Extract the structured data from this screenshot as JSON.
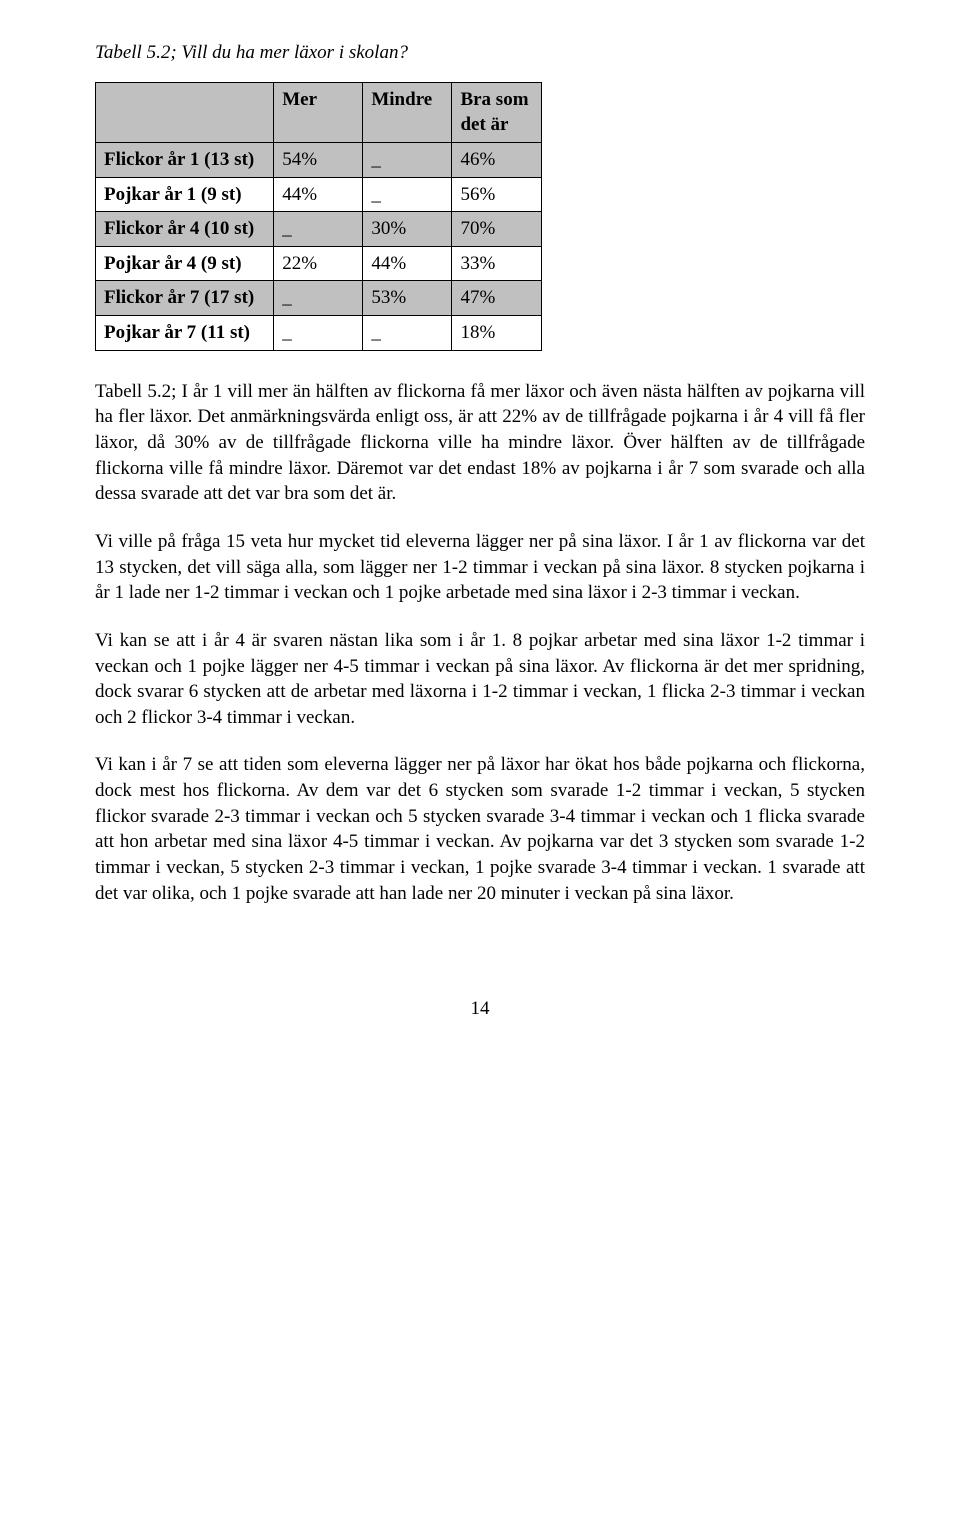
{
  "caption": "Tabell 5.2; Vill du ha mer läxor i skolan?",
  "table": {
    "header_blank": "",
    "headers": [
      "Mer",
      "Mindre",
      "Bra som det är"
    ],
    "rows": [
      {
        "shaded": true,
        "label": "Flickor år 1 (13 st)",
        "c1": "54%",
        "c2": "_",
        "c3": "46%"
      },
      {
        "shaded": false,
        "label": "Pojkar år 1 (9 st)",
        "c1": "44%",
        "c2": "_",
        "c3": "56%"
      },
      {
        "shaded": true,
        "label": "Flickor år 4 (10 st)",
        "c1": "_",
        "c2": "30%",
        "c3": "70%"
      },
      {
        "shaded": false,
        "label": "Pojkar år 4 (9 st)",
        "c1": "22%",
        "c2": "44%",
        "c3": "33%"
      },
      {
        "shaded": true,
        "label": "Flickor år 7 (17 st)",
        "c1": "_",
        "c2": "53%",
        "c3": "47%"
      },
      {
        "shaded": false,
        "label": "Pojkar år 7 (11 st)",
        "c1": "_",
        "c2": "_",
        "c3": "18%"
      }
    ]
  },
  "paragraphs": {
    "p1": "Tabell 5.2; I år 1 vill mer än hälften av flickorna få mer läxor och även nästa hälften av pojkarna vill ha fler läxor. Det anmärkningsvärda enligt oss, är att 22% av de tillfrågade pojkarna i år 4 vill få fler läxor, då 30% av de tillfrågade flickorna ville ha mindre läxor. Över hälften av de tillfrågade flickorna ville få mindre läxor. Däremot var det endast 18% av pojkarna i år 7 som svarade och alla dessa svarade att det var bra som det är.",
    "p2": "Vi ville på fråga 15 veta hur mycket tid eleverna lägger ner på sina läxor. I år 1 av flickorna var det 13 stycken, det vill säga alla, som lägger ner 1-2 timmar i veckan på sina läxor. 8 stycken pojkarna i år 1 lade ner 1-2 timmar i veckan och 1 pojke arbetade med sina läxor i 2-3 timmar i veckan.",
    "p3": "Vi kan se att i år 4 är svaren nästan lika som i år 1. 8 pojkar arbetar med sina läxor 1-2 timmar i veckan och 1 pojke lägger ner 4-5 timmar i veckan på sina läxor. Av flickorna är det mer spridning, dock svarar 6 stycken att de arbetar med läxorna i 1-2 timmar i veckan, 1 flicka 2-3 timmar i veckan och 2 flickor 3-4 timmar i veckan.",
    "p4": "Vi kan i år 7 se att tiden som eleverna lägger ner på läxor har ökat hos både pojkarna och flickorna, dock mest hos flickorna. Av dem var det 6 stycken som svarade 1-2 timmar i veckan, 5 stycken flickor svarade 2-3 timmar i veckan och 5 stycken svarade 3-4 timmar i veckan och 1 flicka svarade att hon arbetar med sina läxor 4-5 timmar i veckan. Av pojkarna var det 3 stycken som svarade 1-2 timmar i veckan, 5 stycken 2-3 timmar i veckan, 1 pojke svarade 3-4 timmar i veckan. 1 svarade att det var olika, och 1 pojke svarade att han lade ner 20 minuter i veckan på sina läxor."
  },
  "page_number": "14",
  "colors": {
    "shaded_bg": "#c0c0c0",
    "border": "#000000",
    "text": "#000000",
    "page_bg": "#ffffff"
  }
}
